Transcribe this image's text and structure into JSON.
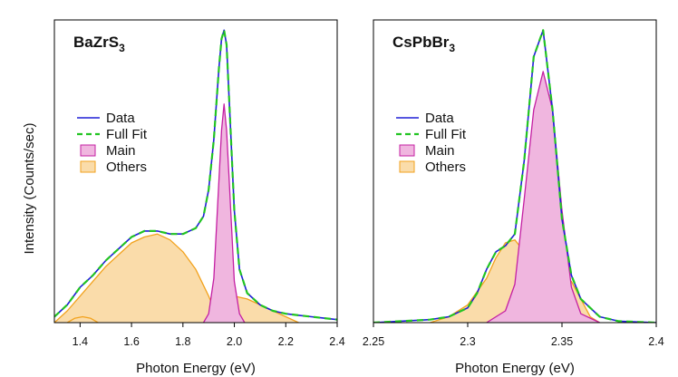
{
  "figure": {
    "ylabel": "Intensity (Counts/sec)"
  },
  "chart_data": [
    {
      "type": "line",
      "title": "BaZrS",
      "title_subscript": "3",
      "xlabel": "Photon Energy (eV)",
      "ylabel": "Intensity (Counts/sec)",
      "xlim": [
        1.3,
        2.4
      ],
      "ylim": [
        0,
        1.0
      ],
      "x_ticks": [
        1.4,
        1.6,
        1.8,
        2.0,
        2.2,
        2.4
      ],
      "x_tick_labels": [
        "1.4",
        "1.6",
        "1.8",
        "2.0",
        "2.2",
        "2.4"
      ],
      "y_ticks_labeled": false,
      "legend": {
        "position": "left",
        "entries": [
          {
            "label": "Data",
            "style": "line",
            "color": "#1f1fd6"
          },
          {
            "label": "Full Fit",
            "style": "dashed",
            "color": "#22c422"
          },
          {
            "label": "Main",
            "style": "fill",
            "fill": "#f0b6df",
            "stroke": "#c41fa3"
          },
          {
            "label": "Others",
            "style": "fill",
            "fill": "#fadcaa",
            "stroke": "#f2a21d"
          }
        ]
      },
      "series": [
        {
          "name": "Data",
          "x": [
            1.3,
            1.35,
            1.4,
            1.45,
            1.5,
            1.55,
            1.6,
            1.65,
            1.7,
            1.75,
            1.8,
            1.85,
            1.88,
            1.9,
            1.92,
            1.94,
            1.95,
            1.96,
            1.97,
            1.98,
            2.0,
            2.02,
            2.05,
            2.1,
            2.15,
            2.2,
            2.25,
            2.3,
            2.35,
            2.4
          ],
          "y": [
            0.02,
            0.06,
            0.12,
            0.16,
            0.21,
            0.25,
            0.29,
            0.31,
            0.31,
            0.3,
            0.3,
            0.32,
            0.36,
            0.45,
            0.62,
            0.86,
            0.96,
            0.99,
            0.94,
            0.75,
            0.38,
            0.18,
            0.1,
            0.06,
            0.04,
            0.03,
            0.025,
            0.02,
            0.015,
            0.01
          ]
        },
        {
          "name": "Full Fit",
          "x": [
            1.3,
            1.35,
            1.4,
            1.45,
            1.5,
            1.55,
            1.6,
            1.65,
            1.7,
            1.75,
            1.8,
            1.85,
            1.88,
            1.9,
            1.92,
            1.94,
            1.95,
            1.96,
            1.97,
            1.98,
            2.0,
            2.02,
            2.05,
            2.1,
            2.15,
            2.2,
            2.25,
            2.3,
            2.35,
            2.4
          ],
          "y": [
            0.02,
            0.06,
            0.12,
            0.16,
            0.21,
            0.25,
            0.29,
            0.31,
            0.31,
            0.3,
            0.3,
            0.32,
            0.36,
            0.45,
            0.62,
            0.86,
            0.96,
            0.99,
            0.94,
            0.75,
            0.38,
            0.18,
            0.1,
            0.06,
            0.04,
            0.03,
            0.025,
            0.02,
            0.015,
            0.01
          ]
        },
        {
          "name": "Main",
          "x": [
            1.88,
            1.9,
            1.92,
            1.94,
            1.95,
            1.96,
            1.97,
            1.98,
            2.0,
            2.02,
            2.04
          ],
          "y": [
            0.0,
            0.03,
            0.15,
            0.48,
            0.65,
            0.74,
            0.65,
            0.48,
            0.14,
            0.03,
            0.0
          ]
        },
        {
          "name": "Others",
          "x": [
            1.3,
            1.35,
            1.4,
            1.45,
            1.5,
            1.55,
            1.6,
            1.65,
            1.7,
            1.75,
            1.8,
            1.85,
            1.9,
            1.92,
            1.95
          ],
          "y": [
            0.0,
            0.04,
            0.09,
            0.14,
            0.19,
            0.23,
            0.27,
            0.29,
            0.3,
            0.28,
            0.24,
            0.18,
            0.09,
            0.05,
            0.0
          ]
        },
        {
          "name": "Others",
          "x": [
            1.35,
            1.38,
            1.41,
            1.44,
            1.47
          ],
          "y": [
            0.0,
            0.015,
            0.02,
            0.015,
            0.0
          ]
        },
        {
          "name": "Others",
          "x": [
            1.9,
            1.93,
            1.96,
            2.0,
            2.05,
            2.1,
            2.15,
            2.2,
            2.25
          ],
          "y": [
            0.02,
            0.05,
            0.08,
            0.09,
            0.08,
            0.06,
            0.04,
            0.02,
            0.0
          ]
        }
      ]
    },
    {
      "type": "line",
      "title": "CsPbBr",
      "title_subscript": "3",
      "xlabel": "Photon Energy (eV)",
      "ylabel": "",
      "xlim": [
        2.25,
        2.4
      ],
      "ylim": [
        0,
        1.0
      ],
      "x_ticks": [
        2.25,
        2.3,
        2.35,
        2.4
      ],
      "x_tick_labels": [
        "2.25",
        "2.3",
        "2.35",
        "2.4"
      ],
      "y_ticks_labeled": false,
      "legend": {
        "position": "left",
        "entries": [
          {
            "label": "Data",
            "style": "line",
            "color": "#1f1fd6"
          },
          {
            "label": "Full Fit",
            "style": "dashed",
            "color": "#22c422"
          },
          {
            "label": "Main",
            "style": "fill",
            "fill": "#f0b6df",
            "stroke": "#c41fa3"
          },
          {
            "label": "Others",
            "style": "fill",
            "fill": "#fadcaa",
            "stroke": "#f2a21d"
          }
        ]
      },
      "series": [
        {
          "name": "Data",
          "x": [
            2.25,
            2.28,
            2.29,
            2.3,
            2.305,
            2.31,
            2.315,
            2.32,
            2.325,
            2.33,
            2.335,
            2.34,
            2.345,
            2.35,
            2.355,
            2.36,
            2.37,
            2.38,
            2.4
          ],
          "y": [
            0.0,
            0.01,
            0.02,
            0.05,
            0.1,
            0.18,
            0.24,
            0.26,
            0.3,
            0.55,
            0.9,
            0.99,
            0.72,
            0.35,
            0.16,
            0.08,
            0.02,
            0.005,
            0.0
          ]
        },
        {
          "name": "Full Fit",
          "x": [
            2.25,
            2.28,
            2.29,
            2.3,
            2.305,
            2.31,
            2.315,
            2.32,
            2.325,
            2.33,
            2.335,
            2.34,
            2.345,
            2.35,
            2.355,
            2.36,
            2.37,
            2.38,
            2.4
          ],
          "y": [
            0.0,
            0.01,
            0.02,
            0.05,
            0.1,
            0.18,
            0.24,
            0.26,
            0.3,
            0.55,
            0.9,
            0.99,
            0.72,
            0.35,
            0.16,
            0.08,
            0.02,
            0.005,
            0.0
          ]
        },
        {
          "name": "Main",
          "x": [
            2.31,
            2.32,
            2.325,
            2.33,
            2.335,
            2.34,
            2.345,
            2.35,
            2.355,
            2.36,
            2.37
          ],
          "y": [
            0.0,
            0.04,
            0.13,
            0.42,
            0.72,
            0.85,
            0.72,
            0.38,
            0.12,
            0.03,
            0.0
          ]
        },
        {
          "name": "Others",
          "x": [
            2.28,
            2.29,
            2.3,
            2.31,
            2.315,
            2.32,
            2.325,
            2.33,
            2.335,
            2.34,
            2.35
          ],
          "y": [
            0.0,
            0.02,
            0.06,
            0.15,
            0.22,
            0.27,
            0.28,
            0.24,
            0.12,
            0.03,
            0.0
          ]
        },
        {
          "name": "Others",
          "x": [
            2.345,
            2.35,
            2.355,
            2.36,
            2.365,
            2.37
          ],
          "y": [
            0.0,
            0.06,
            0.14,
            0.08,
            0.02,
            0.0
          ]
        }
      ]
    }
  ]
}
